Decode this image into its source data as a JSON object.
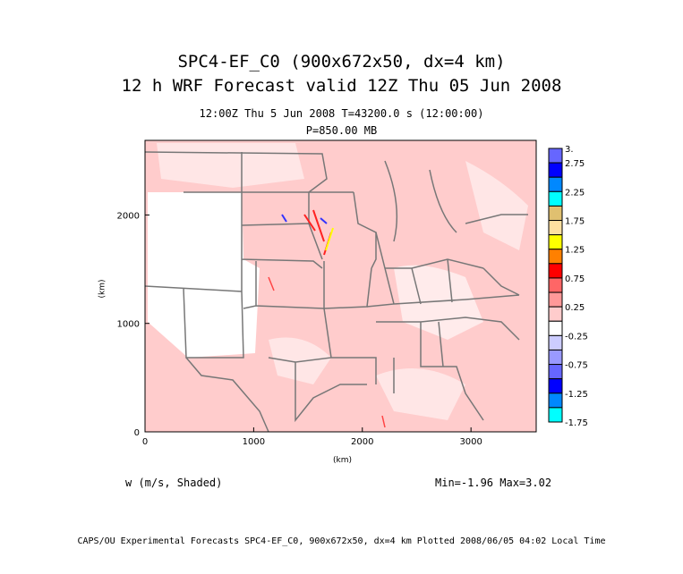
{
  "header": {
    "title_line1": "SPC4-EF_C0 (900x672x50, dx=4 km)",
    "title_line2": "12 h WRF Forecast valid 12Z Thu 05 Jun 2008",
    "subtitle_line1": "12:00Z Thu  5 Jun 2008     T=43200.0 s (12:00:00)",
    "subtitle_line2": "P=850.00 MB"
  },
  "axes": {
    "xlabel": "(km)",
    "ylabel": "(km)",
    "x_ticks": [
      "0",
      "1000",
      "2000",
      "3000"
    ],
    "y_ticks": [
      "0",
      "1000",
      "2000"
    ],
    "x_range_km": [
      0,
      3600
    ],
    "y_range_km": [
      0,
      2688
    ]
  },
  "colorbar": {
    "labels": [
      "3.",
      "2.75",
      "2.25",
      "1.75",
      "1.25",
      "0.75",
      "0.25",
      "-0.25",
      "-0.75",
      "-1.25",
      "-1.75"
    ],
    "colors": [
      "#6666ff",
      "#0000ff",
      "#0088ff",
      "#00ffff",
      "#e0c070",
      "#ffe0a0",
      "#ffff00",
      "#ff8000",
      "#ff0000",
      "#ff6666",
      "#ff9999",
      "#ffcccc",
      "#ffffff",
      "#ccccff",
      "#9999ff",
      "#6666ff",
      "#0000ff",
      "#0088ff",
      "#00ffff"
    ]
  },
  "field": {
    "variable_label": "w (m/s, Shaded)",
    "min_max": "Min=-1.96 Max=3.02"
  },
  "footer": "CAPS/OU Experimental Forecasts  SPC4-EF_C0, 900x672x50, dx=4 km  Plotted 2008/06/05 04:02 Local Time"
}
